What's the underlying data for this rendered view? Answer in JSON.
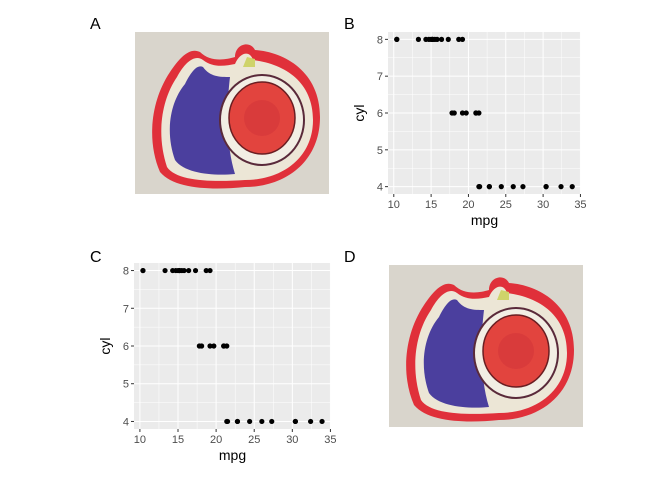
{
  "panel_labels": [
    "A",
    "B",
    "C",
    "D"
  ],
  "image": {
    "subject": "embroidered fig patch",
    "colors": {
      "background": "#d9d5cc",
      "felt": "#e0303a",
      "skin": "#4b3f9e",
      "cream": "#ece6d6",
      "flesh": "#e2443e"
    }
  },
  "chart_data": [
    {
      "panel": "B",
      "type": "scatter",
      "xlabel": "mpg",
      "ylabel": "cyl",
      "xlim": [
        9.225,
        35.075
      ],
      "ylim": [
        3.8,
        8.2
      ],
      "xticks": [
        10,
        15,
        20,
        25,
        30,
        35
      ],
      "yticks": [
        4,
        5,
        6,
        7,
        8
      ],
      "grid": true,
      "panel_bg": "#ebebeb",
      "point_color": "#000000",
      "x": [
        21,
        21,
        22.8,
        21.4,
        18.7,
        18.1,
        14.3,
        24.4,
        22.8,
        19.2,
        17.8,
        16.4,
        17.3,
        15.2,
        10.4,
        10.4,
        14.7,
        32.4,
        30.4,
        33.9,
        21.5,
        15.5,
        15.2,
        13.3,
        19.2,
        27.3,
        26,
        30.4,
        15.8,
        19.7,
        15,
        21.4
      ],
      "y": [
        6,
        6,
        4,
        6,
        8,
        6,
        8,
        4,
        4,
        6,
        6,
        8,
        8,
        8,
        8,
        8,
        8,
        4,
        4,
        4,
        4,
        8,
        8,
        8,
        8,
        4,
        4,
        4,
        8,
        6,
        8,
        4
      ]
    },
    {
      "panel": "C",
      "type": "scatter",
      "xlabel": "mpg",
      "ylabel": "cyl",
      "xlim": [
        9.225,
        35.075
      ],
      "ylim": [
        3.8,
        8.2
      ],
      "xticks": [
        10,
        15,
        20,
        25,
        30,
        35
      ],
      "yticks": [
        4,
        5,
        6,
        7,
        8
      ],
      "grid": true,
      "panel_bg": "#ebebeb",
      "point_color": "#000000",
      "x": [
        21,
        21,
        22.8,
        21.4,
        18.7,
        18.1,
        14.3,
        24.4,
        22.8,
        19.2,
        17.8,
        16.4,
        17.3,
        15.2,
        10.4,
        10.4,
        14.7,
        32.4,
        30.4,
        33.9,
        21.5,
        15.5,
        15.2,
        13.3,
        19.2,
        27.3,
        26,
        30.4,
        15.8,
        19.7,
        15,
        21.4
      ],
      "y": [
        6,
        6,
        4,
        6,
        8,
        6,
        8,
        4,
        4,
        6,
        6,
        8,
        8,
        8,
        8,
        8,
        8,
        4,
        4,
        4,
        4,
        8,
        8,
        8,
        8,
        4,
        4,
        4,
        8,
        6,
        8,
        4
      ]
    }
  ]
}
